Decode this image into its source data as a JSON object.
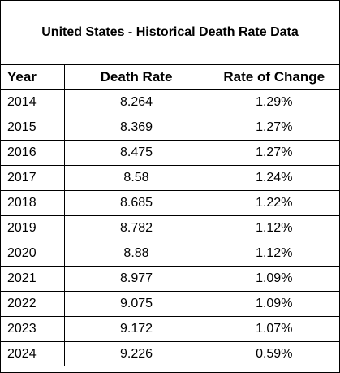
{
  "chart_data": {
    "type": "table",
    "title": "United States - Historical Death Rate Data",
    "columns": [
      "Year",
      "Death Rate",
      "Rate of Change"
    ],
    "rows": [
      [
        "2014",
        "8.264",
        "1.29%"
      ],
      [
        "2015",
        "8.369",
        "1.27%"
      ],
      [
        "2016",
        "8.475",
        "1.27%"
      ],
      [
        "2017",
        "8.58",
        "1.24%"
      ],
      [
        "2018",
        "8.685",
        "1.22%"
      ],
      [
        "2019",
        "8.782",
        "1.12%"
      ],
      [
        "2020",
        "8.88",
        "1.12%"
      ],
      [
        "2021",
        "8.977",
        "1.09%"
      ],
      [
        "2022",
        "9.075",
        "1.09%"
      ],
      [
        "2023",
        "9.172",
        "1.07%"
      ],
      [
        "2024",
        "9.226",
        "0.59%"
      ]
    ]
  }
}
